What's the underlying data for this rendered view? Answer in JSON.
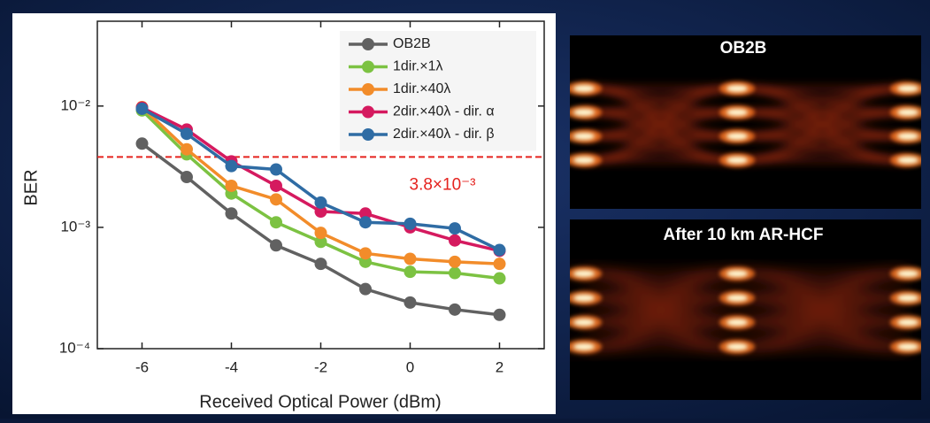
{
  "chart_data": {
    "type": "line",
    "x_label": "Received Optical Power (dBm)",
    "y_label": "BER",
    "x": [
      -6,
      -5,
      -4,
      -3,
      -2,
      -1,
      0,
      1,
      2
    ],
    "series": [
      {
        "name": "OB2B",
        "color": "#616161",
        "values": [
          0.0049,
          0.0026,
          0.0013,
          0.00071,
          0.0005,
          0.00031,
          0.00024,
          0.00021,
          0.00019
        ]
      },
      {
        "name": "1dir.×1λ",
        "color": "#7cc242",
        "values": [
          0.0092,
          0.004,
          0.0019,
          0.0011,
          0.00076,
          0.00052,
          0.00043,
          0.00042,
          0.00038
        ]
      },
      {
        "name": "1dir.×40λ",
        "color": "#f28c2a",
        "values": [
          0.0098,
          0.0044,
          0.0022,
          0.0017,
          0.0009,
          0.00061,
          0.00055,
          0.00052,
          0.0005
        ]
      },
      {
        "name": "2dir.×40λ - dir. α",
        "color": "#d51a5f",
        "values": [
          0.0097,
          0.0064,
          0.0035,
          0.0022,
          0.00135,
          0.0013,
          0.001,
          0.00078,
          0.00064
        ]
      },
      {
        "name": "2dir.×40λ - dir. β",
        "color": "#2f6ca4",
        "values": [
          0.0095,
          0.0059,
          0.0032,
          0.003,
          0.0016,
          0.0011,
          0.00107,
          0.00098,
          0.00065
        ]
      }
    ],
    "xlim": [
      -7,
      3
    ],
    "xticks": [
      -6,
      -4,
      -2,
      0,
      2
    ],
    "ylim": [
      0.0001,
      0.05
    ],
    "y_scale": "log",
    "yticks": [
      {
        "value": 0.0001,
        "label": "10⁻⁴"
      },
      {
        "value": 0.001,
        "label": "10⁻³"
      },
      {
        "value": 0.01,
        "label": "10⁻²"
      }
    ],
    "threshold": {
      "value": 0.0038,
      "label": "3.8×10⁻³",
      "color": "#e5231f"
    },
    "legend": "upper right",
    "grid": false
  },
  "eye_diagrams": [
    {
      "title": "OB2B"
    },
    {
      "title": "After 10 km AR-HCF"
    }
  ]
}
